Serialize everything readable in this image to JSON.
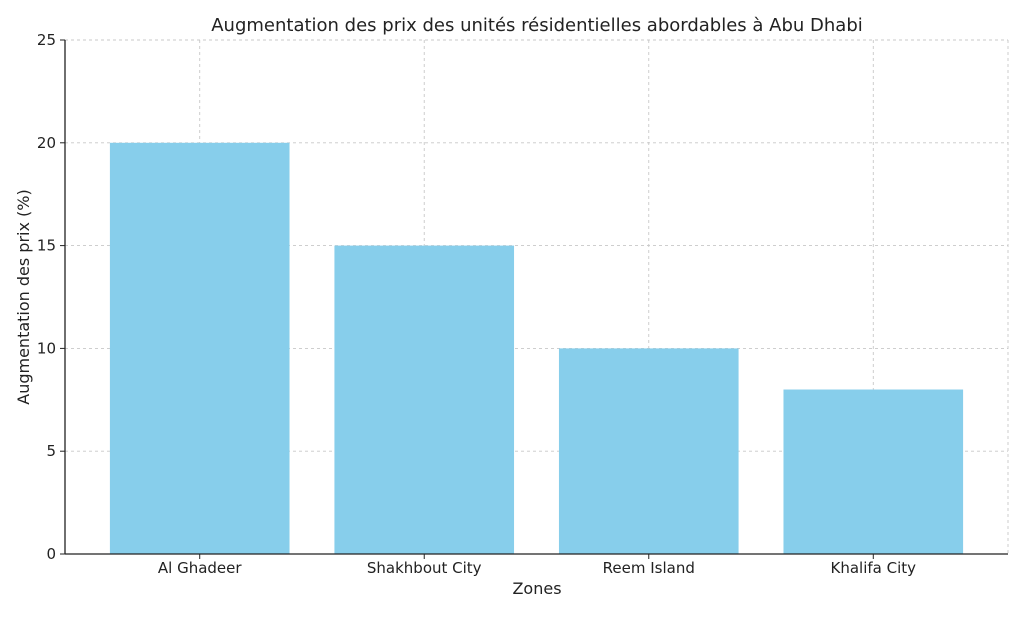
{
  "chart_data": {
    "type": "bar",
    "title": "Augmentation des prix des unités résidentielles abordables à Abu Dhabi",
    "xlabel": "Zones",
    "ylabel": "Augmentation des prix (%)",
    "categories": [
      "Al Ghadeer",
      "Shakhbout City",
      "Reem Island",
      "Khalifa City"
    ],
    "values": [
      20,
      15,
      10,
      8
    ],
    "ylim": [
      0,
      25
    ],
    "yticks": [
      "0",
      "5",
      "10",
      "15",
      "20",
      "25"
    ],
    "grid": true,
    "bar_color": "#87CEEB"
  }
}
